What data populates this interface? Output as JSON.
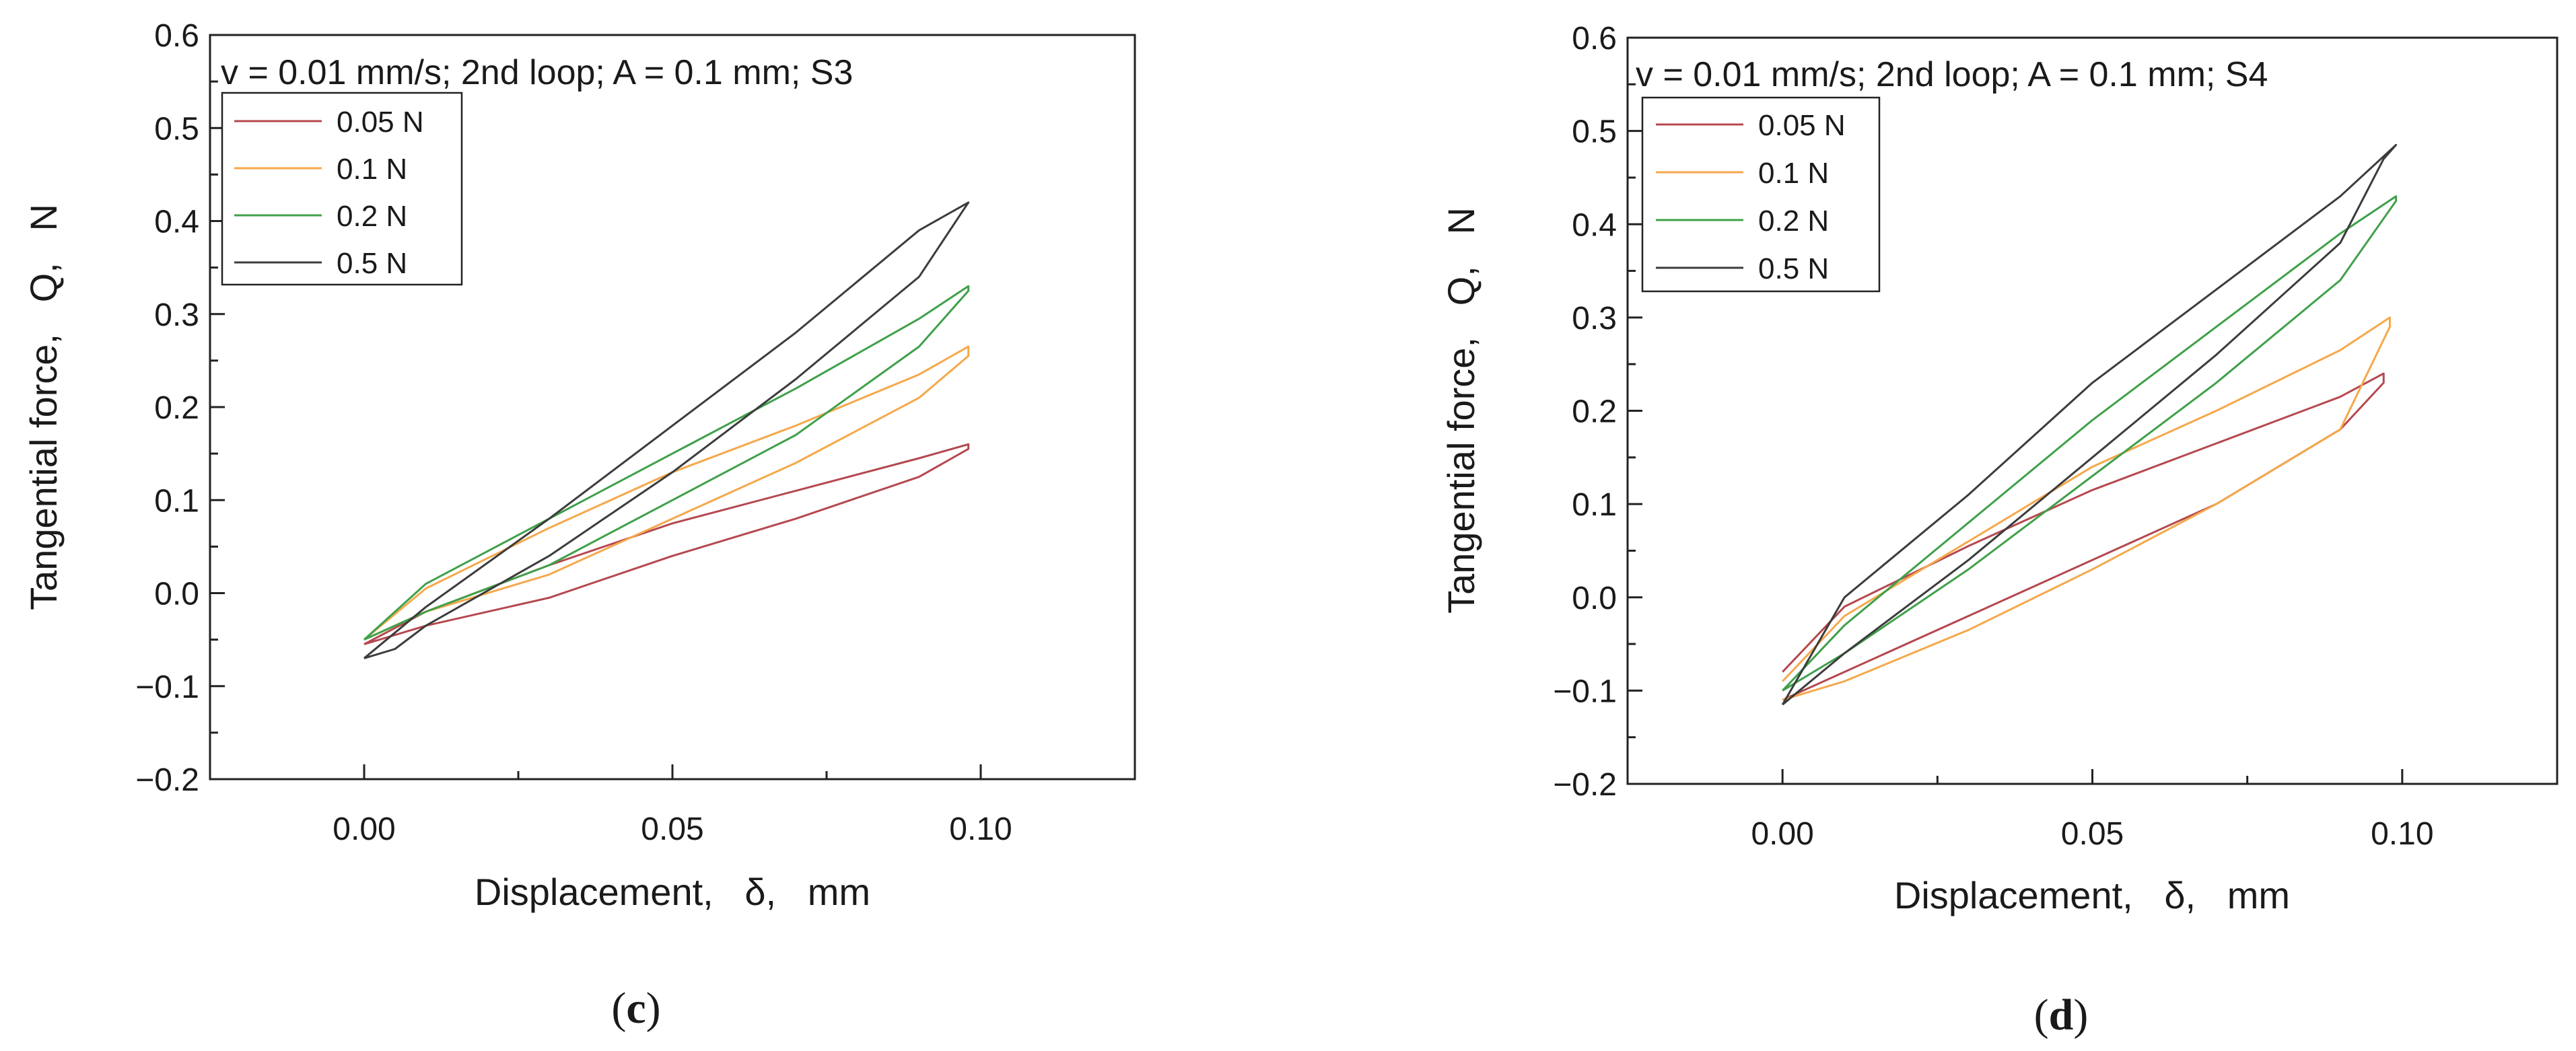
{
  "chart_data": [
    {
      "panel": "c",
      "type": "line",
      "title": "v = 0.01 mm/s; 2nd loop; A = 0.1 mm; S3",
      "xlabel": "Displacement,   δ,   mm",
      "ylabel": "Tangential force,   Q,   N",
      "xlim": [
        -0.025,
        0.125
      ],
      "ylim": [
        -0.2,
        0.6
      ],
      "xticks": [
        0.0,
        0.05,
        0.1
      ],
      "xtick_labels": [
        "0.00",
        "0.05",
        "0.10"
      ],
      "yticks": [
        -0.2,
        -0.1,
        0.0,
        0.1,
        0.2,
        0.3,
        0.4,
        0.5,
        0.6
      ],
      "ytick_labels": [
        "−0.2",
        "−0.1",
        "0.0",
        "0.1",
        "0.2",
        "0.3",
        "0.4",
        "0.5",
        "0.6"
      ],
      "legend_position": "top-left",
      "caption": "c",
      "series": [
        {
          "name": "0.05 N",
          "color": "#b5484f",
          "x": [
            0.0,
            0.01,
            0.03,
            0.05,
            0.07,
            0.09,
            0.098,
            0.098,
            0.09,
            0.07,
            0.05,
            0.03,
            0.01,
            0.0
          ],
          "y": [
            -0.055,
            -0.035,
            -0.005,
            0.04,
            0.08,
            0.125,
            0.155,
            0.16,
            0.145,
            0.11,
            0.075,
            0.03,
            -0.02,
            -0.055
          ]
        },
        {
          "name": "0.1 N",
          "color": "#f5a84a",
          "x": [
            0.0,
            0.01,
            0.03,
            0.05,
            0.07,
            0.09,
            0.098,
            0.098,
            0.09,
            0.07,
            0.05,
            0.03,
            0.01,
            0.0
          ],
          "y": [
            -0.05,
            -0.02,
            0.02,
            0.08,
            0.14,
            0.21,
            0.255,
            0.265,
            0.235,
            0.18,
            0.13,
            0.07,
            0.005,
            -0.05
          ]
        },
        {
          "name": "0.2 N",
          "color": "#3fa04a",
          "x": [
            0.0,
            0.01,
            0.03,
            0.05,
            0.07,
            0.09,
            0.098,
            0.098,
            0.09,
            0.07,
            0.05,
            0.03,
            0.01,
            0.0
          ],
          "y": [
            -0.05,
            -0.02,
            0.03,
            0.1,
            0.17,
            0.265,
            0.325,
            0.33,
            0.295,
            0.22,
            0.15,
            0.08,
            0.01,
            -0.05
          ]
        },
        {
          "name": "0.5 N",
          "color": "#3c3c3c",
          "x": [
            0.0,
            0.005,
            0.01,
            0.03,
            0.05,
            0.07,
            0.09,
            0.097,
            0.098,
            0.09,
            0.07,
            0.05,
            0.03,
            0.01,
            0.0
          ],
          "y": [
            -0.07,
            -0.06,
            -0.035,
            0.04,
            0.13,
            0.23,
            0.34,
            0.41,
            0.42,
            0.39,
            0.28,
            0.18,
            0.08,
            -0.015,
            -0.07
          ]
        }
      ]
    },
    {
      "panel": "d",
      "type": "line",
      "title": "v = 0.01 mm/s; 2nd loop; A = 0.1 mm; S4",
      "xlabel": "Displacement,   δ,   mm",
      "ylabel": "Tangential force,   Q,   N",
      "xlim": [
        -0.025,
        0.125
      ],
      "ylim": [
        -0.2,
        0.6
      ],
      "xticks": [
        0.0,
        0.05,
        0.1
      ],
      "xtick_labels": [
        "0.00",
        "0.05",
        "0.10"
      ],
      "yticks": [
        -0.2,
        -0.1,
        0.0,
        0.1,
        0.2,
        0.3,
        0.4,
        0.5,
        0.6
      ],
      "ytick_labels": [
        "−0.2",
        "−0.1",
        "0.0",
        "0.1",
        "0.2",
        "0.3",
        "0.4",
        "0.5",
        "0.6"
      ],
      "legend_position": "top-left",
      "caption": "d",
      "series": [
        {
          "name": "0.05 N",
          "color": "#b5484f",
          "x": [
            0.0,
            0.01,
            0.03,
            0.05,
            0.07,
            0.09,
            0.097,
            0.097,
            0.09,
            0.07,
            0.05,
            0.03,
            0.01,
            0.0
          ],
          "y": [
            -0.11,
            -0.08,
            -0.02,
            0.04,
            0.1,
            0.18,
            0.23,
            0.24,
            0.215,
            0.165,
            0.115,
            0.055,
            -0.01,
            -0.08
          ]
        },
        {
          "name": "0.1 N",
          "color": "#f5a84a",
          "x": [
            0.0,
            0.01,
            0.03,
            0.05,
            0.07,
            0.09,
            0.098,
            0.098,
            0.09,
            0.07,
            0.05,
            0.03,
            0.01,
            0.0
          ],
          "y": [
            -0.11,
            -0.09,
            -0.035,
            0.03,
            0.1,
            0.18,
            0.29,
            0.3,
            0.265,
            0.2,
            0.14,
            0.06,
            -0.02,
            -0.09
          ]
        },
        {
          "name": "0.2 N",
          "color": "#3fa04a",
          "x": [
            0.0,
            0.01,
            0.03,
            0.05,
            0.07,
            0.09,
            0.099,
            0.099,
            0.09,
            0.07,
            0.05,
            0.03,
            0.01,
            0.0
          ],
          "y": [
            -0.1,
            -0.06,
            0.03,
            0.13,
            0.23,
            0.34,
            0.425,
            0.43,
            0.39,
            0.29,
            0.19,
            0.08,
            -0.03,
            -0.1
          ]
        },
        {
          "name": "0.5 N",
          "color": "#3c3c3c",
          "x": [
            0.0,
            0.01,
            0.03,
            0.05,
            0.07,
            0.09,
            0.097,
            0.099,
            0.09,
            0.07,
            0.05,
            0.03,
            0.01,
            0.0
          ],
          "y": [
            -0.115,
            -0.06,
            0.04,
            0.15,
            0.26,
            0.38,
            0.47,
            0.485,
            0.43,
            0.33,
            0.23,
            0.11,
            0.0,
            -0.115
          ]
        }
      ]
    }
  ]
}
